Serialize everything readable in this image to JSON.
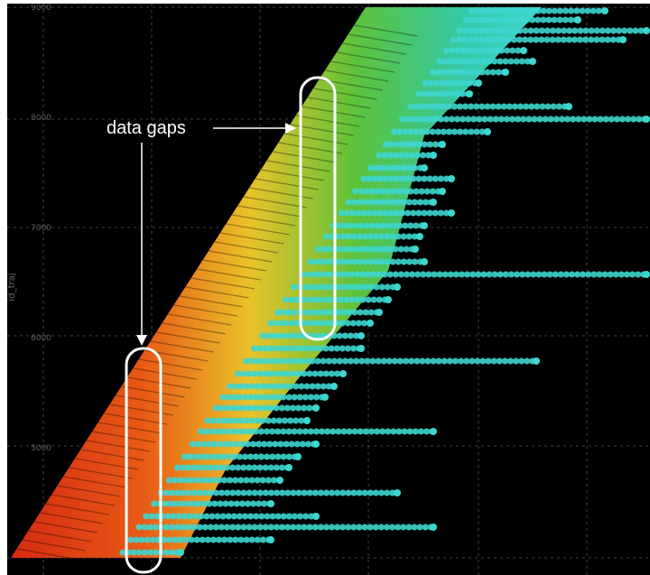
{
  "chart_data": {
    "type": "scatter",
    "title": "",
    "xlabel": "",
    "ylabel": "id_traj",
    "ylim": [
      4000,
      9000
    ],
    "y_ticks": [
      "5000",
      "6000",
      "7000",
      "8000",
      "9000"
    ],
    "grid": true,
    "background": "#000000",
    "colors": {
      "low_density": "#3ed6d0",
      "mid_density": "#27b34a",
      "high_density": "#e0dc2c",
      "peak_density": "#e03a1c"
    },
    "annotations": [
      {
        "text": "data gaps",
        "y_range": [
          8300,
          6200
        ]
      },
      {
        "text": "data gaps",
        "y_range": [
          5800,
          4000
        ]
      }
    ]
  }
}
